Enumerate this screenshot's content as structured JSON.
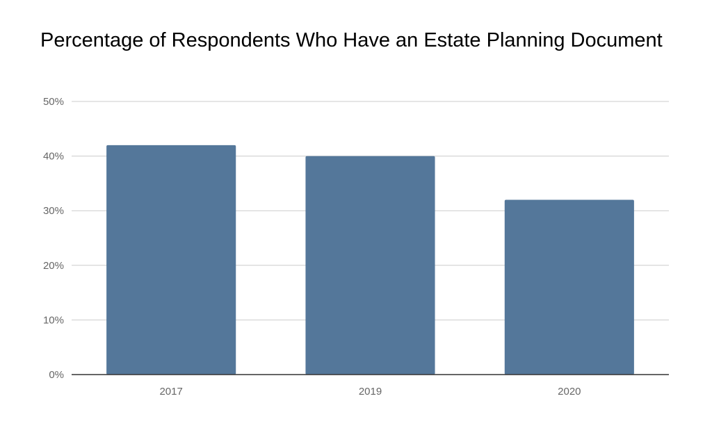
{
  "chart_data": {
    "type": "bar",
    "title": "Percentage of Respondents Who Have an Estate Planning Document",
    "xlabel": "",
    "ylabel": "",
    "categories": [
      "2017",
      "2019",
      "2020"
    ],
    "values": [
      42,
      40,
      32
    ],
    "ylim": [
      0,
      50
    ],
    "yticks": [
      "0%",
      "10%",
      "20%",
      "30%",
      "40%",
      "50%"
    ],
    "grid": true,
    "legend": "none",
    "bar_color": "#54779a",
    "grid_color": "#cccccc",
    "axis_color": "#333333"
  }
}
